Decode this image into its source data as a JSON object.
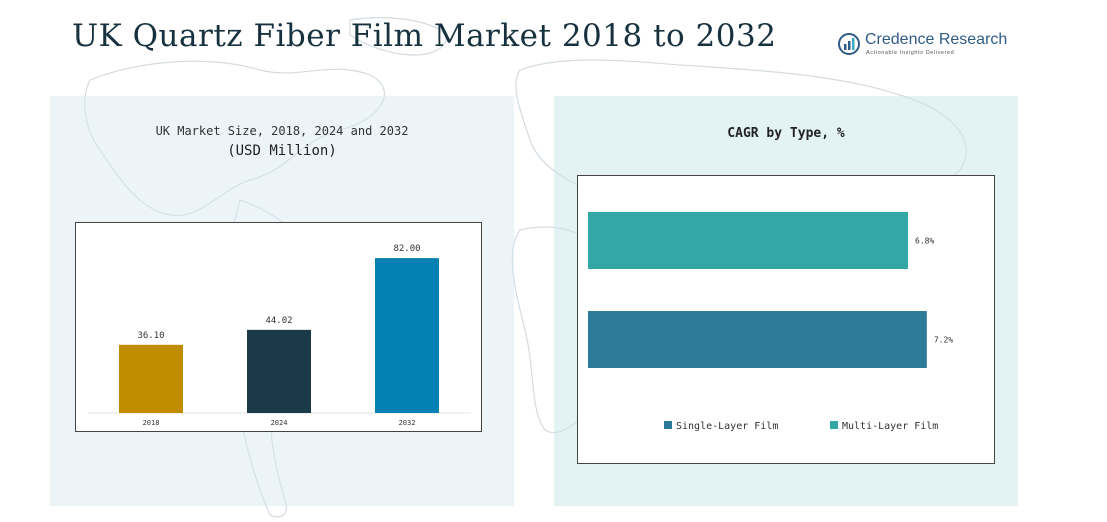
{
  "title": "UK Quartz Fiber Film Market 2018 to 2032",
  "logo": {
    "name": "Credence Research",
    "tagline": "Actionable Insights Delivered"
  },
  "left_panel": {
    "subtitle_line1": "UK Market Size, 2018, 2024 and 2032",
    "subtitle_line2": "(USD Million)"
  },
  "right_panel": {
    "subtitle": "CAGR by Type, %"
  },
  "colors": {
    "bar_2018": "#c28c00",
    "bar_2024": "#1a3a4a",
    "bar_2032": "#0580b3",
    "single_layer": "#2e7a99",
    "multi_layer": "#33a6a6"
  },
  "chart_data": [
    {
      "type": "bar",
      "title": "UK Market Size, 2018, 2024 and 2032 (USD Million)",
      "categories": [
        "2018",
        "2024",
        "2032"
      ],
      "values": [
        36.1,
        44.02,
        82.0
      ],
      "value_labels": [
        "36.10",
        "44.02",
        "82.00"
      ],
      "colors": [
        "#c28c00",
        "#1a3a4a",
        "#0580b3"
      ],
      "ylim": [
        0,
        90
      ],
      "grid": false
    },
    {
      "type": "bar",
      "orientation": "horizontal",
      "title": "CAGR by Type, %",
      "categories": [
        "Multi-Layer Film",
        "Single-Layer Film"
      ],
      "values": [
        6.8,
        7.2
      ],
      "value_labels": [
        "6.8%",
        "7.2%"
      ],
      "colors": [
        "#33a6a6",
        "#2e7a99"
      ],
      "legend": [
        "Single-Layer Film",
        "Multi-Layer Film"
      ],
      "legend_position": "bottom",
      "xlim": [
        0,
        8.5
      ],
      "grid": false
    }
  ]
}
